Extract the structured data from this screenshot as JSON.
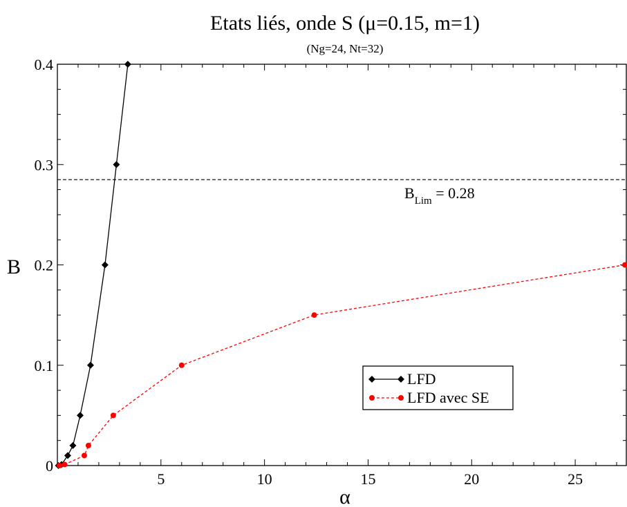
{
  "chart_data": {
    "type": "line",
    "title": "Etats liés, onde S (μ=0.15, m=1)",
    "subtitle": "(Ng=24, Nt=32)",
    "xlabel": "α",
    "ylabel": "B",
    "xlim": [
      0,
      27.5
    ],
    "ylim": [
      0,
      0.4
    ],
    "x_ticks": [
      5,
      10,
      15,
      20,
      25
    ],
    "y_ticks": [
      0,
      0.1,
      0.2,
      0.3,
      0.4
    ],
    "x_tick_labels": [
      "5",
      "10",
      "15",
      "20",
      "25"
    ],
    "y_tick_labels": [
      "0",
      "0.1",
      "0.2",
      "0.3",
      "0.4"
    ],
    "grid": false,
    "legend_position": "lower-right",
    "series": [
      {
        "name": "LFD",
        "color": "#000000",
        "line_style": "solid",
        "marker": "diamond",
        "x": [
          0.05,
          0.2,
          0.5,
          0.75,
          1.1,
          1.6,
          2.3,
          2.85,
          3.4
        ],
        "y": [
          0.0,
          0.001,
          0.01,
          0.02,
          0.05,
          0.1,
          0.2,
          0.3,
          0.4
        ]
      },
      {
        "name": "LFD avec SE",
        "color": "#ff0000",
        "line_style": "dashed",
        "marker": "circle",
        "x": [
          0.1,
          0.35,
          1.3,
          1.5,
          2.7,
          6.0,
          12.4,
          27.4
        ],
        "y": [
          0.0,
          0.001,
          0.01,
          0.02,
          0.05,
          0.1,
          0.15,
          0.2
        ]
      }
    ],
    "reference_lines": [
      {
        "orientation": "horizontal",
        "y": 0.285,
        "style": "dashed",
        "color": "#000000",
        "label_main": "B",
        "label_sub": "Lim",
        "label_rest": " = 0.28"
      }
    ]
  }
}
